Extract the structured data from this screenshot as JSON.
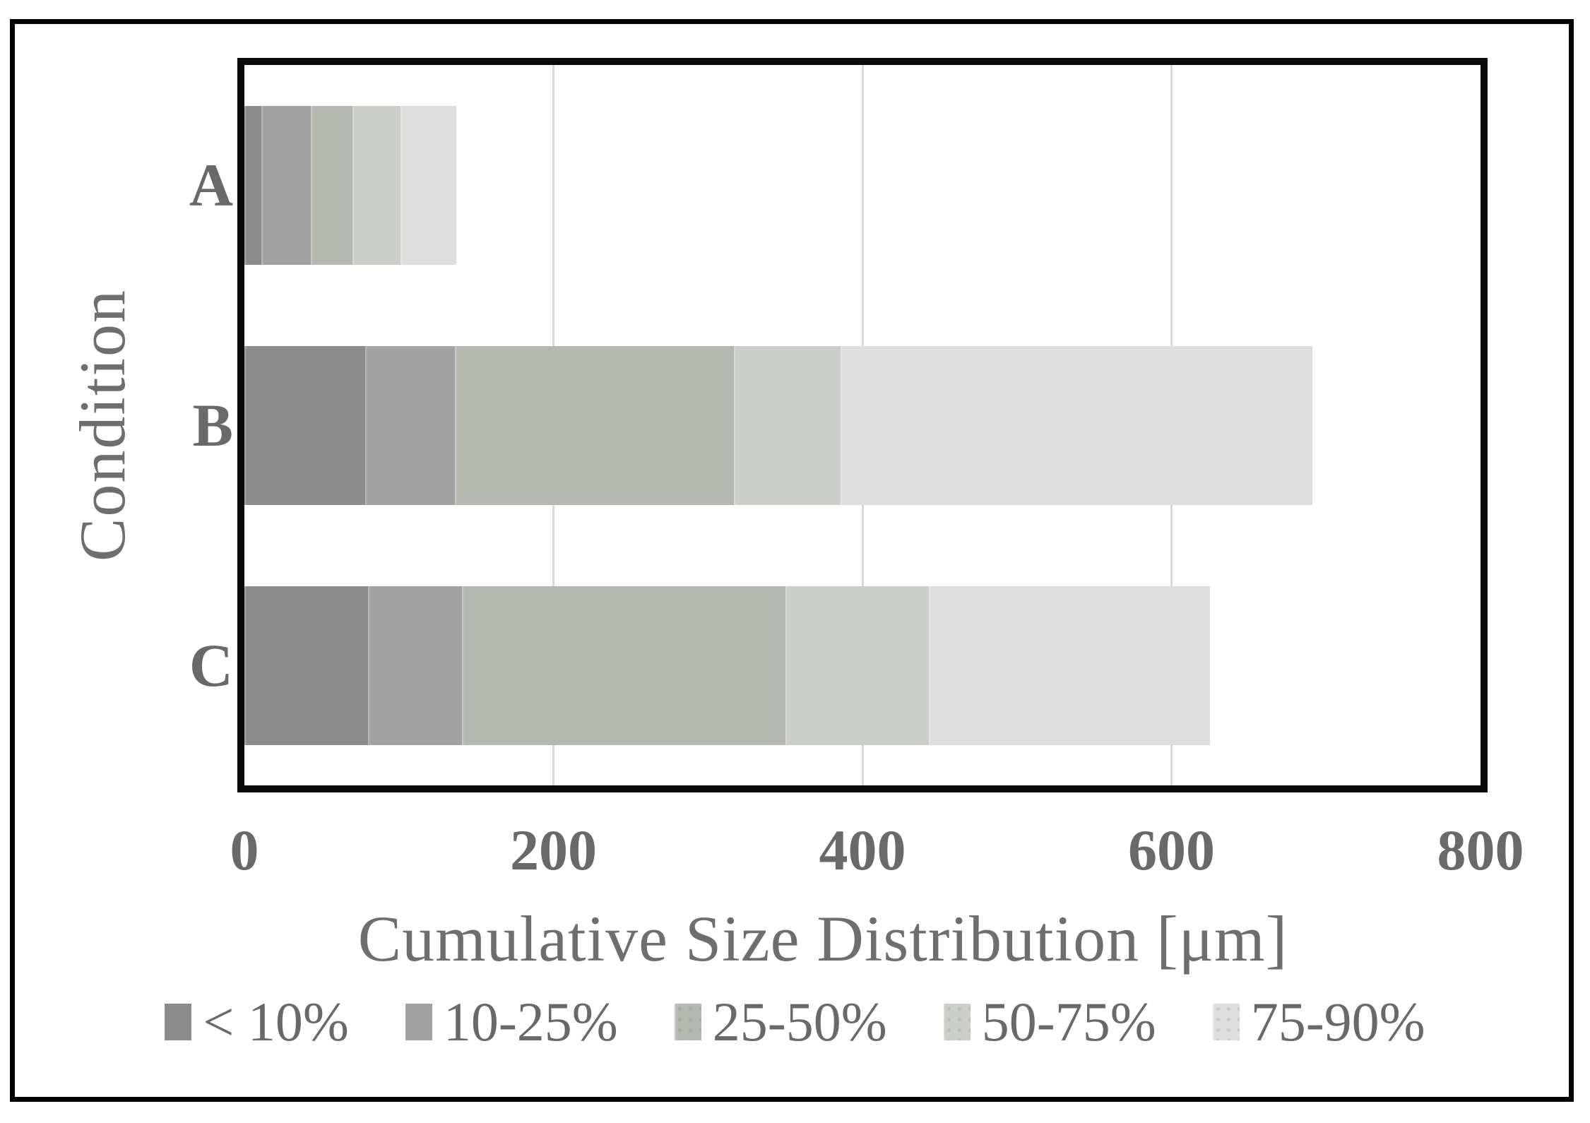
{
  "palette": {
    "segment_colors": [
      "#8b8b8b",
      "#a2a2a2",
      "#b5b7b1",
      "#cccec9",
      "#dedede"
    ],
    "segment_dotted": [
      false,
      false,
      true,
      true,
      true
    ],
    "gridline_color": "#d9d9d9",
    "text_color": "#6e6e6e",
    "plot_border_color": "#0a0a0a",
    "figure_border_color": "#000000"
  },
  "chart_data": {
    "type": "bar",
    "orientation": "horizontal",
    "stacked": true,
    "xlabel": "Cumulative Size Distribution [μm]",
    "ylabel": "Condition",
    "categories": [
      "A",
      "B",
      "C"
    ],
    "xlim": [
      0,
      800
    ],
    "xticks": [
      0,
      200,
      400,
      600,
      800
    ],
    "gridlines_at": [
      200,
      400,
      600
    ],
    "legend_position": "bottom",
    "legend_labels": [
      "< 10%",
      "10-25%",
      "25-50%",
      "50-75%",
      "75-90%"
    ],
    "series": [
      {
        "name": "< 10%",
        "values": [
          11,
          78,
          80
        ]
      },
      {
        "name": "10-25%",
        "values": [
          32,
          58,
          61
        ]
      },
      {
        "name": "25-50%",
        "values": [
          27,
          181,
          209
        ]
      },
      {
        "name": "50-75%",
        "values": [
          31,
          69,
          93
        ]
      },
      {
        "name": "75-90%",
        "values": [
          36,
          305,
          182
        ]
      }
    ],
    "cumulative_by_category": {
      "A": [
        11,
        43,
        70,
        101,
        137
      ],
      "B": [
        78,
        136,
        317,
        386,
        691
      ],
      "C": [
        80,
        141,
        350,
        443,
        625
      ]
    }
  }
}
